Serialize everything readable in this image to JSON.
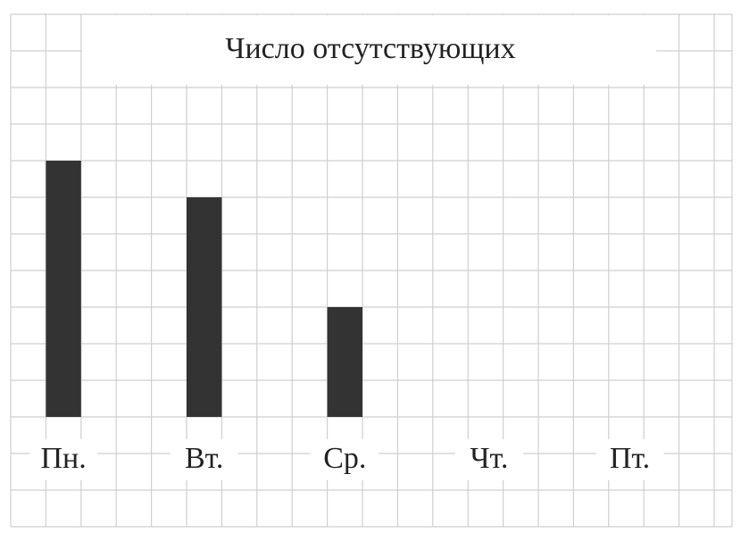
{
  "chart_data": {
    "type": "bar",
    "title": "Число отсутствующих",
    "categories": [
      "Пн.",
      "Вт.",
      "Ср.",
      "Чт.",
      "Пт."
    ],
    "values": [
      7,
      6,
      3,
      0,
      0
    ],
    "color": "#333333",
    "ylim": [
      0,
      11
    ],
    "grid": true
  }
}
